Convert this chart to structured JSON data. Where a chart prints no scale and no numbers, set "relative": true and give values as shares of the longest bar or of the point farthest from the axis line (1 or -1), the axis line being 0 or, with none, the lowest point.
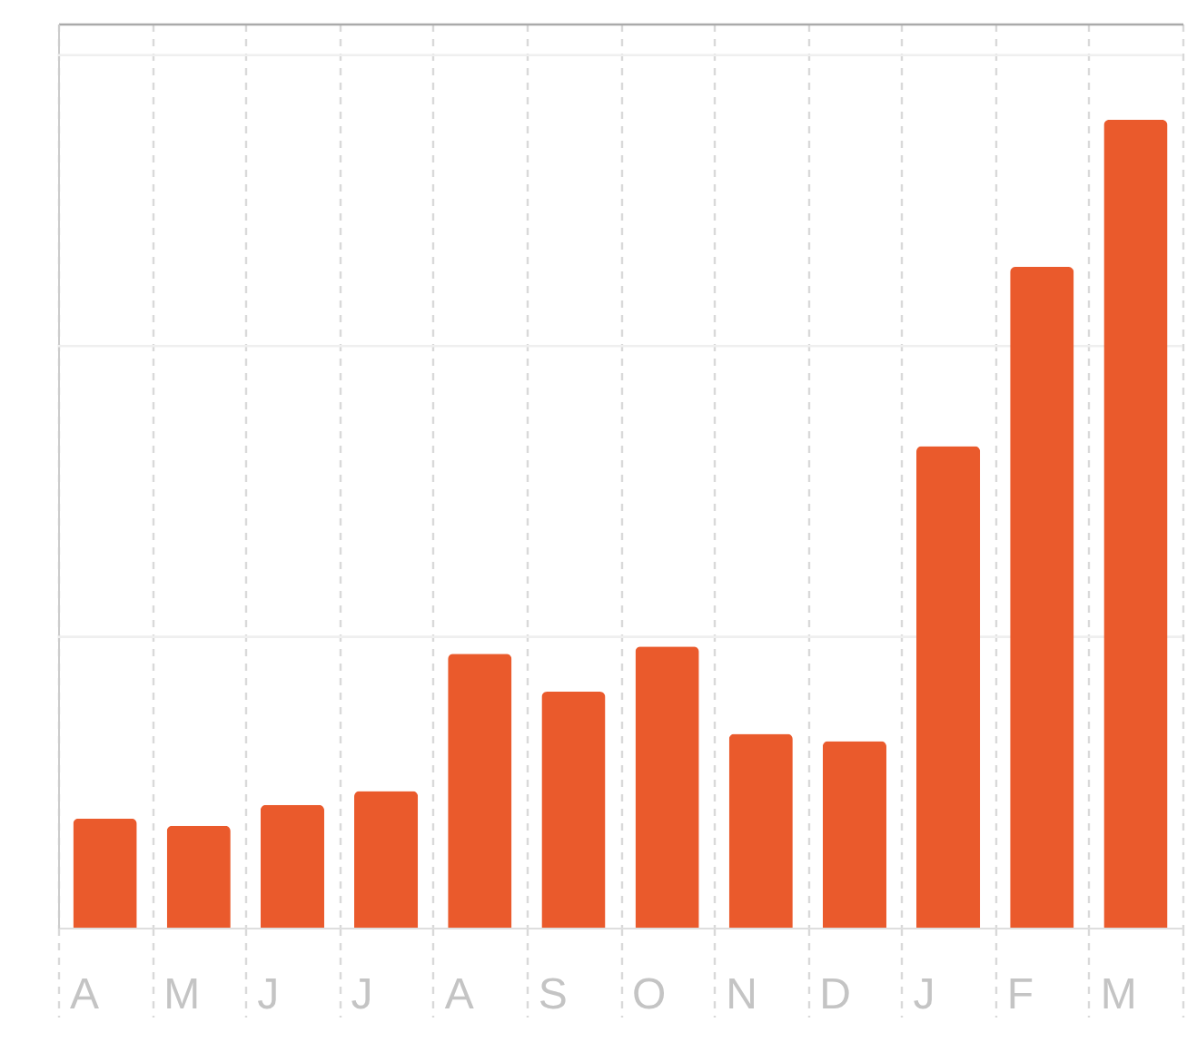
{
  "chart_data": {
    "type": "bar",
    "categories": [
      "A",
      "M",
      "J",
      "J",
      "A",
      "S",
      "O",
      "N",
      "D",
      "J",
      "F",
      "M"
    ],
    "values": [
      0.135,
      0.126,
      0.152,
      0.169,
      0.339,
      0.292,
      0.348,
      0.24,
      0.231,
      0.596,
      0.818,
      1
    ],
    "color": "#ea5a2c",
    "relative": true,
    "grid": "x",
    "ref_lines": [
      {
        "axis": "y",
        "value": 0.36,
        "color": "#efefef"
      },
      {
        "axis": "y",
        "value": 0.72,
        "color": "#efefef"
      },
      {
        "axis": "y",
        "value": 1.08,
        "color": "#efefef"
      }
    ]
  }
}
